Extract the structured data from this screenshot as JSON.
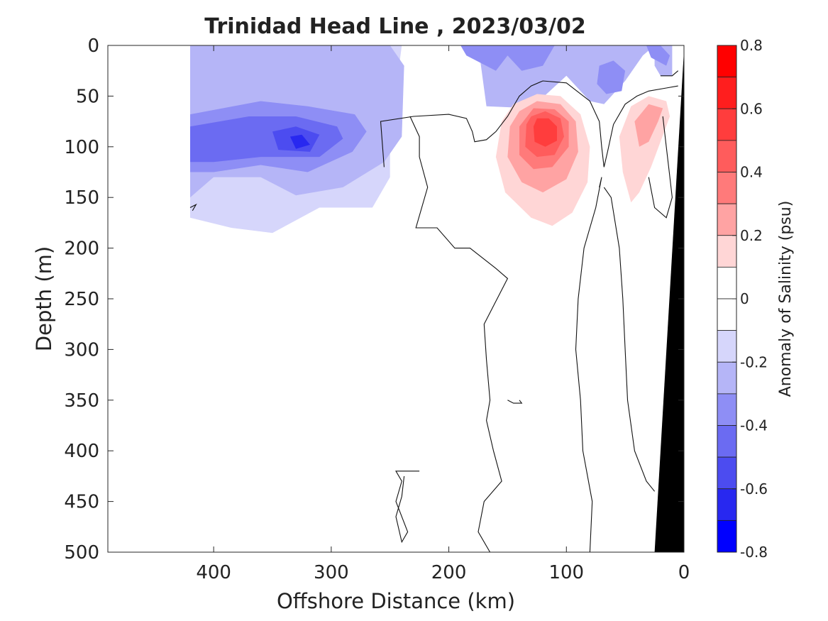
{
  "chart_data": {
    "type": "heatmap",
    "title": "Trinidad Head Line , 2023/03/02",
    "xlabel": "Offshore Distance (km)",
    "ylabel": "Depth (m)",
    "xlim": [
      490,
      0
    ],
    "ylim": [
      0,
      500
    ],
    "x_reversed": true,
    "y_reversed": true,
    "x_ticks": [
      400,
      300,
      200,
      100,
      0
    ],
    "y_ticks": [
      0,
      50,
      100,
      150,
      200,
      250,
      300,
      350,
      400,
      450,
      500
    ],
    "colorbar": {
      "label": "Anomaly of Salinity (psu)",
      "range": [
        -0.8,
        0.8
      ],
      "ticks": [
        0.8,
        0.6,
        0.4,
        0.2,
        0,
        -0.2,
        -0.4,
        -0.6,
        -0.8
      ],
      "levels": [
        {
          "min": 0.7,
          "max": 0.8,
          "color": "#ff0000"
        },
        {
          "min": 0.6,
          "max": 0.7,
          "color": "#ff1e1e"
        },
        {
          "min": 0.5,
          "max": 0.6,
          "color": "#ff3d3d"
        },
        {
          "min": 0.4,
          "max": 0.5,
          "color": "#ff5c5c"
        },
        {
          "min": 0.3,
          "max": 0.4,
          "color": "#ff7a7a"
        },
        {
          "min": 0.2,
          "max": 0.3,
          "color": "#ffa3a3"
        },
        {
          "min": 0.1,
          "max": 0.2,
          "color": "#ffd6d6"
        },
        {
          "min": 0.0,
          "max": 0.1,
          "color": "#ffffff"
        },
        {
          "min": -0.1,
          "max": 0.0,
          "color": "#ffffff"
        },
        {
          "min": -0.2,
          "max": -0.1,
          "color": "#d6d6fb"
        },
        {
          "min": -0.3,
          "max": -0.2,
          "color": "#b5b5f7"
        },
        {
          "min": -0.4,
          "max": -0.3,
          "color": "#8e8ef5"
        },
        {
          "min": -0.5,
          "max": -0.4,
          "color": "#6b6bf2"
        },
        {
          "min": -0.6,
          "max": -0.5,
          "color": "#4c4cf0"
        },
        {
          "min": -0.7,
          "max": -0.6,
          "color": "#2828f0"
        },
        {
          "min": -0.8,
          "max": -0.7,
          "color": "#0000ff"
        }
      ]
    },
    "regions": [
      {
        "name": "fresh-band",
        "anomaly_psu": -0.15,
        "points": [
          [
            420,
            0
          ],
          [
            240,
            0
          ],
          [
            250,
            90
          ],
          [
            250,
            130
          ],
          [
            265,
            160
          ],
          [
            310,
            160
          ],
          [
            350,
            185
          ],
          [
            385,
            180
          ],
          [
            420,
            170
          ]
        ]
      },
      {
        "name": "fresh-band",
        "anomaly_psu": -0.25,
        "points": [
          [
            420,
            0
          ],
          [
            175,
            0
          ],
          [
            168,
            60
          ],
          [
            130,
            62
          ],
          [
            100,
            30
          ],
          [
            80,
            55
          ],
          [
            68,
            58
          ],
          [
            50,
            35
          ],
          [
            35,
            10
          ],
          [
            25,
            0
          ],
          [
            25,
            20
          ],
          [
            20,
            30
          ],
          [
            10,
            30
          ],
          [
            10,
            0
          ],
          [
            420,
            0
          ],
          [
            420,
            150
          ],
          [
            400,
            130
          ],
          [
            360,
            130
          ],
          [
            330,
            148
          ],
          [
            290,
            140
          ],
          [
            255,
            115
          ],
          [
            240,
            90
          ],
          [
            238,
            20
          ],
          [
            250,
            0
          ],
          [
            420,
            0
          ]
        ]
      },
      {
        "name": "fresh-band",
        "anomaly_psu": -0.35,
        "points": [
          [
            420,
            68
          ],
          [
            360,
            55
          ],
          [
            320,
            60
          ],
          [
            280,
            68
          ],
          [
            270,
            85
          ],
          [
            282,
            105
          ],
          [
            320,
            125
          ],
          [
            360,
            118
          ],
          [
            400,
            125
          ],
          [
            420,
            125
          ]
        ]
      },
      {
        "name": "fresh-band",
        "anomaly_psu": -0.45,
        "points": [
          [
            420,
            80
          ],
          [
            370,
            70
          ],
          [
            330,
            70
          ],
          [
            295,
            80
          ],
          [
            290,
            92
          ],
          [
            310,
            110
          ],
          [
            360,
            110
          ],
          [
            400,
            115
          ],
          [
            420,
            115
          ]
        ]
      },
      {
        "name": "fresh-band",
        "anomaly_psu": -0.55,
        "points": [
          [
            350,
            85
          ],
          [
            330,
            80
          ],
          [
            310,
            88
          ],
          [
            318,
            105
          ],
          [
            345,
            103
          ]
        ]
      },
      {
        "name": "fresh-band",
        "anomaly_psu": -0.65,
        "points": [
          [
            335,
            90
          ],
          [
            325,
            88
          ],
          [
            318,
            98
          ],
          [
            330,
            102
          ]
        ]
      },
      {
        "name": "fresh-band",
        "anomaly_psu": -0.35,
        "points": [
          [
            205,
            0
          ],
          [
            190,
            0
          ],
          [
            185,
            10
          ],
          [
            160,
            25
          ],
          [
            150,
            10
          ],
          [
            138,
            25
          ],
          [
            120,
            20
          ],
          [
            110,
            0
          ],
          [
            205,
            0
          ]
        ]
      },
      {
        "name": "fresh-band",
        "anomaly_psu": -0.35,
        "points": [
          [
            72,
            20
          ],
          [
            60,
            15
          ],
          [
            50,
            25
          ],
          [
            53,
            45
          ],
          [
            66,
            48
          ],
          [
            74,
            38
          ]
        ]
      },
      {
        "name": "fresh-band",
        "anomaly_psu": -0.35,
        "points": [
          [
            20,
            0
          ],
          [
            32,
            0
          ],
          [
            28,
            12
          ],
          [
            15,
            20
          ],
          [
            12,
            10
          ]
        ]
      },
      {
        "name": "salty-core",
        "anomaly_psu": 0.15,
        "points": [
          [
            155,
            75
          ],
          [
            160,
            110
          ],
          [
            152,
            145
          ],
          [
            130,
            170
          ],
          [
            112,
            178
          ],
          [
            95,
            165
          ],
          [
            82,
            135
          ],
          [
            80,
            100
          ],
          [
            88,
            68
          ],
          [
            105,
            50
          ],
          [
            125,
            48
          ],
          [
            145,
            58
          ]
        ]
      },
      {
        "name": "salty-core",
        "anomaly_psu": 0.15,
        "points": [
          [
            55,
            90
          ],
          [
            52,
            125
          ],
          [
            45,
            155
          ],
          [
            38,
            145
          ],
          [
            28,
            120
          ],
          [
            20,
            95
          ],
          [
            12,
            70
          ],
          [
            15,
            55
          ],
          [
            30,
            50
          ],
          [
            45,
            60
          ]
        ]
      },
      {
        "name": "salty-core",
        "anomaly_psu": 0.25,
        "points": [
          [
            148,
            80
          ],
          [
            150,
            110
          ],
          [
            138,
            135
          ],
          [
            120,
            145
          ],
          [
            100,
            132
          ],
          [
            90,
            105
          ],
          [
            92,
            75
          ],
          [
            105,
            58
          ],
          [
            125,
            55
          ],
          [
            140,
            65
          ]
        ]
      },
      {
        "name": "salty-core",
        "anomaly_psu": 0.25,
        "points": [
          [
            42,
            75
          ],
          [
            38,
            100
          ],
          [
            30,
            95
          ],
          [
            22,
            75
          ],
          [
            18,
            62
          ],
          [
            30,
            58
          ]
        ]
      },
      {
        "name": "salty-core",
        "anomaly_psu": 0.35,
        "points": [
          [
            140,
            80
          ],
          [
            140,
            108
          ],
          [
            128,
            122
          ],
          [
            112,
            120
          ],
          [
            98,
            100
          ],
          [
            98,
            75
          ],
          [
            110,
            63
          ],
          [
            128,
            62
          ]
        ]
      },
      {
        "name": "salty-core",
        "anomaly_psu": 0.45,
        "points": [
          [
            134,
            78
          ],
          [
            135,
            100
          ],
          [
            125,
            110
          ],
          [
            110,
            108
          ],
          [
            102,
            90
          ],
          [
            105,
            72
          ],
          [
            118,
            65
          ],
          [
            130,
            70
          ]
        ]
      },
      {
        "name": "salty-core",
        "anomaly_psu": 0.55,
        "points": [
          [
            128,
            80
          ],
          [
            127,
            95
          ],
          [
            118,
            100
          ],
          [
            108,
            94
          ],
          [
            108,
            80
          ],
          [
            115,
            72
          ],
          [
            125,
            72
          ]
        ]
      }
    ],
    "zero_contours": [
      [
        [
          255,
          120
        ],
        [
          258,
          75
        ],
        [
          230,
          70
        ],
        [
          200,
          68
        ],
        [
          185,
          72
        ],
        [
          180,
          85
        ],
        [
          178,
          95
        ],
        [
          168,
          93
        ],
        [
          160,
          85
        ],
        [
          150,
          70
        ],
        [
          140,
          50
        ],
        [
          130,
          40
        ],
        [
          120,
          35
        ],
        [
          100,
          37
        ],
        [
          80,
          55
        ],
        [
          72,
          75
        ],
        [
          70,
          100
        ],
        [
          68,
          120
        ],
        [
          65,
          105
        ],
        [
          60,
          78
        ],
        [
          50,
          58
        ],
        [
          40,
          50
        ],
        [
          30,
          45
        ],
        [
          15,
          42
        ],
        [
          5,
          40
        ]
      ],
      [
        [
          233,
          70
        ],
        [
          225,
          90
        ],
        [
          225,
          110
        ],
        [
          218,
          140
        ],
        [
          228,
          180
        ],
        [
          210,
          180
        ],
        [
          195,
          200
        ],
        [
          182,
          200
        ],
        [
          160,
          220
        ],
        [
          150,
          230
        ],
        [
          170,
          275
        ],
        [
          168,
          310
        ],
        [
          165,
          350
        ],
        [
          168,
          370
        ],
        [
          162,
          400
        ],
        [
          155,
          430
        ],
        [
          170,
          450
        ],
        [
          175,
          480
        ],
        [
          165,
          500
        ]
      ],
      [
        [
          72,
          140
        ],
        [
          70,
          130
        ],
        [
          75,
          160
        ],
        [
          85,
          200
        ],
        [
          90,
          250
        ],
        [
          92,
          300
        ],
        [
          88,
          350
        ],
        [
          86,
          400
        ],
        [
          78,
          450
        ],
        [
          80,
          500
        ]
      ],
      [
        [
          68,
          140
        ],
        [
          62,
          150
        ],
        [
          55,
          200
        ],
        [
          52,
          250
        ],
        [
          50,
          300
        ],
        [
          48,
          350
        ],
        [
          42,
          400
        ],
        [
          32,
          430
        ],
        [
          25,
          440
        ]
      ],
      [
        [
          20,
          30
        ],
        [
          10,
          30
        ],
        [
          5,
          25
        ]
      ],
      [
        [
          150,
          350
        ],
        [
          145,
          353
        ],
        [
          138,
          353
        ],
        [
          140,
          350
        ]
      ],
      [
        [
          225,
          420
        ],
        [
          245,
          420
        ],
        [
          240,
          430
        ],
        [
          245,
          450
        ],
        [
          235,
          480
        ],
        [
          240,
          490
        ],
        [
          245,
          465
        ],
        [
          240,
          445
        ],
        [
          238,
          425
        ]
      ],
      [
        [
          420,
          160
        ],
        [
          415,
          157
        ],
        [
          418,
          163
        ]
      ],
      [
        [
          18,
          70
        ],
        [
          15,
          100
        ],
        [
          12,
          130
        ],
        [
          10,
          150
        ],
        [
          15,
          170
        ],
        [
          25,
          160
        ],
        [
          30,
          130
        ]
      ]
    ],
    "bathymetry_mask": {
      "color": "#000000",
      "points": [
        [
          0,
          5
        ],
        [
          25,
          500
        ],
        [
          0,
          500
        ]
      ]
    },
    "annotations": []
  }
}
